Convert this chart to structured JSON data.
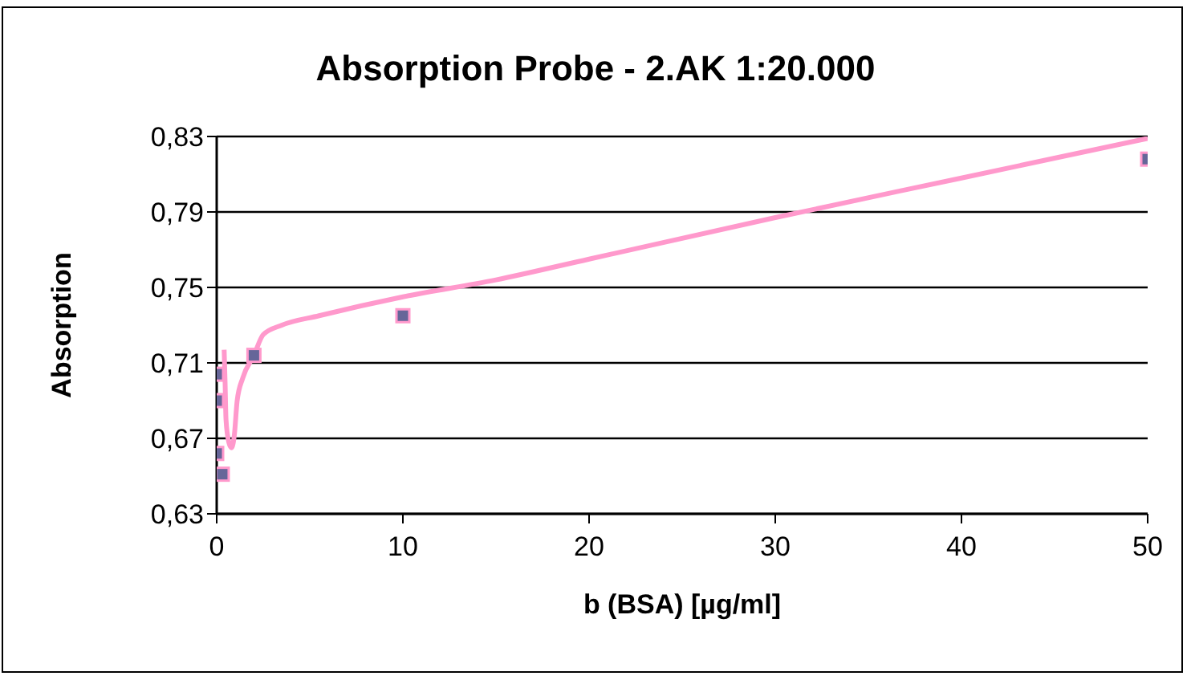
{
  "chart_data": {
    "type": "scatter",
    "title": "Absorption Probe - 2.AK 1:20.000",
    "xlabel": "b (BSA) [µg/ml]",
    "ylabel": "Absorption",
    "series": [
      {
        "color": "#666699",
        "marker": "square",
        "x": [
          0,
          0,
          0,
          0.3,
          2,
          10,
          50
        ],
        "values": [
          0.704,
          0.69,
          0.662,
          0.651,
          0.714,
          0.735,
          0.818
        ]
      },
      {
        "type": "line",
        "color": "#ff99cc",
        "marker": "none",
        "x": [
          0.4,
          0.45,
          0.5,
          0.65,
          0.8,
          0.95,
          1.1,
          1.4,
          2,
          2.5,
          3.5,
          5.5,
          10,
          15,
          20,
          30,
          40,
          50
        ],
        "values": [
          0.717,
          0.7,
          0.68,
          0.668,
          0.665,
          0.672,
          0.69,
          0.702,
          0.714,
          0.725,
          0.73,
          0.735,
          0.745,
          0.754,
          0.765,
          0.787,
          0.808,
          0.829
        ]
      }
    ],
    "xlim": [
      0,
      50
    ],
    "xticks": [
      0,
      10,
      20,
      30,
      40,
      50
    ],
    "ylim": [
      0.63,
      0.83
    ],
    "yticks": [
      {
        "value": 0.63,
        "label": "0,63"
      },
      {
        "value": 0.67,
        "label": "0,67"
      },
      {
        "value": 0.71,
        "label": "0,71"
      },
      {
        "value": 0.75,
        "label": "0,75"
      },
      {
        "value": 0.79,
        "label": "0,79"
      },
      {
        "value": 0.83,
        "label": "0,83"
      }
    ],
    "grid": "y",
    "legend": false
  }
}
